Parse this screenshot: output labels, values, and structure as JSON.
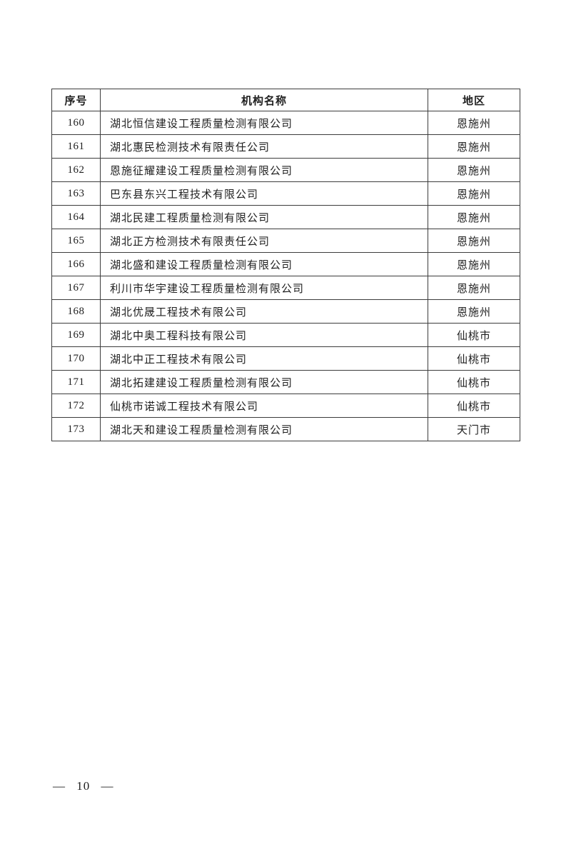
{
  "table": {
    "headers": {
      "serial": "序号",
      "name": "机构名称",
      "region": "地区"
    },
    "rows": [
      {
        "no": "160",
        "name": "湖北恒信建设工程质量检测有限公司",
        "region": "恩施州"
      },
      {
        "no": "161",
        "name": "湖北惠民检测技术有限责任公司",
        "region": "恩施州"
      },
      {
        "no": "162",
        "name": "恩施征耀建设工程质量检测有限公司",
        "region": "恩施州"
      },
      {
        "no": "163",
        "name": "巴东县东兴工程技术有限公司",
        "region": "恩施州"
      },
      {
        "no": "164",
        "name": "湖北民建工程质量检测有限公司",
        "region": "恩施州"
      },
      {
        "no": "165",
        "name": "湖北正方检测技术有限责任公司",
        "region": "恩施州"
      },
      {
        "no": "166",
        "name": "湖北盛和建设工程质量检测有限公司",
        "region": "恩施州"
      },
      {
        "no": "167",
        "name": "利川市华宇建设工程质量检测有限公司",
        "region": "恩施州"
      },
      {
        "no": "168",
        "name": "湖北优晟工程技术有限公司",
        "region": "恩施州"
      },
      {
        "no": "169",
        "name": "湖北中奥工程科技有限公司",
        "region": "仙桃市"
      },
      {
        "no": "170",
        "name": "湖北中正工程技术有限公司",
        "region": "仙桃市"
      },
      {
        "no": "171",
        "name": "湖北拓建建设工程质量检测有限公司",
        "region": "仙桃市"
      },
      {
        "no": "172",
        "name": "仙桃市诺诚工程技术有限公司",
        "region": "仙桃市"
      },
      {
        "no": "173",
        "name": "湖北天和建设工程质量检测有限公司",
        "region": "天门市"
      }
    ]
  },
  "footer": {
    "page_number": "— 10 —"
  },
  "colors": {
    "page_background": "#ffffff",
    "border": "#3c3c3c",
    "text": "#1f1f1f"
  }
}
